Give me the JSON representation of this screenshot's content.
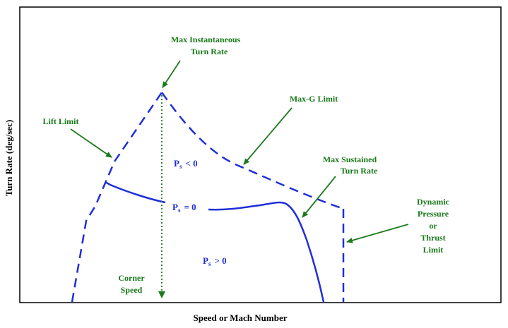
{
  "colors": {
    "curve": "#1f2fd8",
    "annotation": "#1a7a1a",
    "axis": "#000000",
    "background": "#ffffff"
  },
  "axes": {
    "x_title": "Speed or Mach Number",
    "y_title": "Turn Rate (deg/sec)"
  },
  "annotations": {
    "max_instantaneous": [
      "Max Instantaneous",
      "Turn Rate"
    ],
    "lift_limit": "Lift Limit",
    "max_g_limit": "Max-G Limit",
    "max_sustained": [
      "Max Sustained",
      "Turn Rate"
    ],
    "dynamic_pressure": [
      "Dynamic",
      "Pressure",
      "or",
      "Thrust",
      "Limit"
    ],
    "corner_speed": [
      "Corner",
      "Speed"
    ]
  },
  "regions": {
    "ps_lt_0": {
      "symbol": "P",
      "sub": "s",
      "relation": "< 0"
    },
    "ps_eq_0": {
      "symbol": "P",
      "sub": "s",
      "relation": "= 0"
    },
    "ps_gt_0": {
      "symbol": "P",
      "sub": "s",
      "relation": "> 0"
    }
  }
}
